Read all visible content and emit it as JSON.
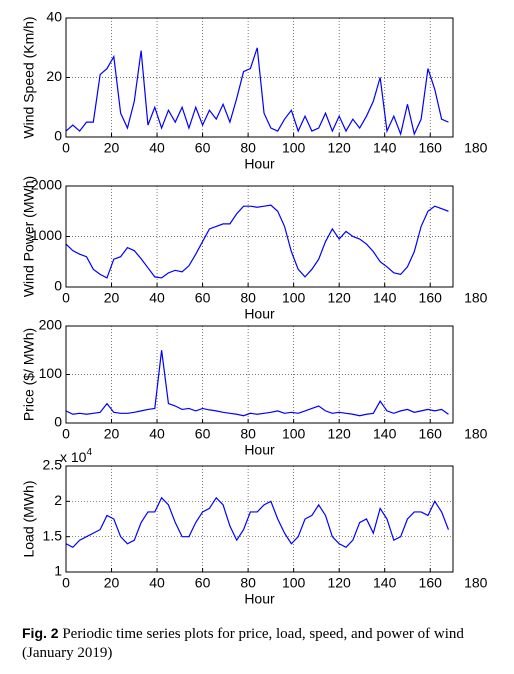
{
  "chart_data": [
    {
      "type": "line",
      "ylabel": "Wind Speed (Km/h)",
      "xlabel": "Hour",
      "color": "#0000ff",
      "grid": true,
      "x": [
        0,
        3,
        6,
        9,
        12,
        15,
        18,
        21,
        24,
        27,
        30,
        33,
        36,
        39,
        42,
        45,
        48,
        51,
        54,
        57,
        60,
        63,
        66,
        69,
        72,
        75,
        78,
        81,
        84,
        87,
        90,
        93,
        96,
        99,
        102,
        105,
        108,
        111,
        114,
        117,
        120,
        123,
        126,
        129,
        132,
        135,
        138,
        141,
        144,
        147,
        150,
        153,
        156,
        159,
        162,
        165,
        168
      ],
      "values": [
        2,
        4,
        2,
        5,
        5,
        21,
        23,
        27,
        8,
        3,
        12,
        29,
        4,
        10,
        3,
        9,
        5,
        10,
        3,
        10,
        4,
        9,
        6,
        11,
        5,
        13,
        22,
        23,
        30,
        8,
        3,
        2,
        6,
        9,
        2,
        7,
        2,
        3,
        8,
        2,
        7,
        2,
        6,
        3,
        7,
        12,
        20,
        2,
        7,
        1,
        11,
        1,
        6,
        23,
        16,
        6,
        5
      ],
      "xlim": [
        0,
        170
      ],
      "xticks": [
        0,
        20,
        40,
        60,
        80,
        100,
        120,
        140,
        160,
        180
      ],
      "ylim": [
        0,
        40
      ],
      "yticks": [
        0,
        20,
        40
      ]
    },
    {
      "type": "line",
      "ylabel": "Wind Power (MWh)",
      "xlabel": "Hour",
      "color": "#0000ff",
      "grid": true,
      "x": [
        0,
        3,
        6,
        9,
        12,
        15,
        18,
        21,
        24,
        27,
        30,
        33,
        36,
        39,
        42,
        45,
        48,
        51,
        54,
        57,
        60,
        63,
        66,
        69,
        72,
        75,
        78,
        81,
        84,
        87,
        90,
        93,
        96,
        99,
        102,
        105,
        108,
        111,
        114,
        117,
        120,
        123,
        126,
        129,
        132,
        135,
        138,
        141,
        144,
        147,
        150,
        153,
        156,
        159,
        162,
        165,
        168
      ],
      "values": [
        850,
        720,
        650,
        600,
        350,
        250,
        180,
        550,
        600,
        780,
        720,
        560,
        380,
        200,
        180,
        280,
        330,
        300,
        420,
        650,
        900,
        1150,
        1200,
        1250,
        1250,
        1450,
        1600,
        1600,
        1580,
        1600,
        1620,
        1500,
        1200,
        700,
        350,
        200,
        350,
        550,
        900,
        1150,
        950,
        1100,
        1000,
        950,
        850,
        700,
        500,
        400,
        280,
        250,
        400,
        700,
        1200,
        1500,
        1600,
        1550,
        1500
      ],
      "xlim": [
        0,
        170
      ],
      "xticks": [
        0,
        20,
        40,
        60,
        80,
        100,
        120,
        140,
        160,
        180
      ],
      "ylim": [
        0,
        2000
      ],
      "yticks": [
        0,
        1000,
        2000
      ]
    },
    {
      "type": "line",
      "ylabel": "Price ($/ MWh)",
      "xlabel": "Hour",
      "color": "#0000ff",
      "grid": true,
      "x": [
        0,
        3,
        6,
        9,
        12,
        15,
        18,
        21,
        24,
        27,
        30,
        33,
        36,
        39,
        42,
        45,
        48,
        51,
        54,
        57,
        60,
        63,
        66,
        69,
        72,
        75,
        78,
        81,
        84,
        87,
        90,
        93,
        96,
        99,
        102,
        105,
        108,
        111,
        114,
        117,
        120,
        123,
        126,
        129,
        132,
        135,
        138,
        141,
        144,
        147,
        150,
        153,
        156,
        159,
        162,
        165,
        168
      ],
      "values": [
        25,
        18,
        20,
        18,
        20,
        22,
        40,
        22,
        20,
        20,
        22,
        25,
        28,
        30,
        150,
        40,
        35,
        28,
        30,
        25,
        30,
        27,
        25,
        22,
        20,
        18,
        15,
        20,
        18,
        20,
        22,
        25,
        20,
        22,
        20,
        25,
        30,
        35,
        25,
        20,
        22,
        20,
        18,
        15,
        18,
        20,
        45,
        25,
        20,
        25,
        28,
        22,
        25,
        28,
        25,
        28,
        18
      ],
      "xlim": [
        0,
        170
      ],
      "xticks": [
        0,
        20,
        40,
        60,
        80,
        100,
        120,
        140,
        160,
        180
      ],
      "ylim": [
        0,
        200
      ],
      "yticks": [
        0,
        100,
        200
      ]
    },
    {
      "type": "line",
      "ylabel": "Load (MWh)",
      "xlabel": "Hour",
      "color": "#0000ff",
      "grid": true,
      "axis_multiplier": "x 10",
      "axis_multiplier_exponent": "4",
      "x": [
        0,
        3,
        6,
        9,
        12,
        15,
        18,
        21,
        24,
        27,
        30,
        33,
        36,
        39,
        42,
        45,
        48,
        51,
        54,
        57,
        60,
        63,
        66,
        69,
        72,
        75,
        78,
        81,
        84,
        87,
        90,
        93,
        96,
        99,
        102,
        105,
        108,
        111,
        114,
        117,
        120,
        123,
        126,
        129,
        132,
        135,
        138,
        141,
        144,
        147,
        150,
        153,
        156,
        159,
        162,
        165,
        168
      ],
      "values": [
        1.4,
        1.35,
        1.45,
        1.5,
        1.55,
        1.6,
        1.8,
        1.75,
        1.5,
        1.4,
        1.45,
        1.7,
        1.85,
        1.85,
        2.05,
        1.95,
        1.7,
        1.5,
        1.5,
        1.7,
        1.85,
        1.9,
        2.05,
        1.95,
        1.65,
        1.45,
        1.6,
        1.85,
        1.85,
        1.95,
        2.0,
        1.75,
        1.55,
        1.4,
        1.5,
        1.75,
        1.8,
        1.95,
        1.8,
        1.5,
        1.4,
        1.35,
        1.45,
        1.7,
        1.75,
        1.55,
        1.9,
        1.75,
        1.45,
        1.5,
        1.75,
        1.85,
        1.85,
        1.8,
        2.0,
        1.85,
        1.6
      ],
      "xlim": [
        0,
        170
      ],
      "xticks": [
        0,
        20,
        40,
        60,
        80,
        100,
        120,
        140,
        160,
        180
      ],
      "ylim": [
        1,
        2.5
      ],
      "yticks": [
        1,
        1.5,
        2,
        2.5
      ]
    }
  ],
  "caption": {
    "label": "Fig. 2",
    "text": "Periodic time series plots for price, load, speed, and power of wind (January 2019)"
  }
}
